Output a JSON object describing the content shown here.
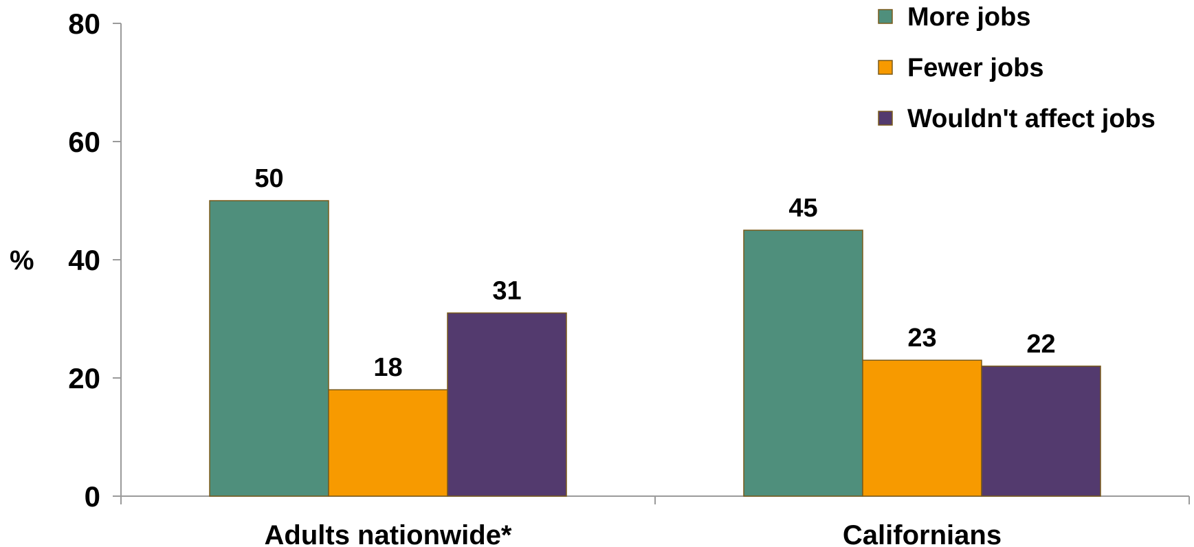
{
  "chart_data": {
    "type": "bar",
    "title": "",
    "xlabel": "",
    "ylabel": "%",
    "ylim": [
      0,
      80
    ],
    "yticks": [
      0,
      20,
      40,
      60,
      80
    ],
    "grid": false,
    "legend_position": "top-right",
    "categories": [
      "Adults nationwide*",
      "Californians"
    ],
    "series": [
      {
        "name": "More jobs",
        "values": [
          50,
          45
        ],
        "color": "#4F8F7C"
      },
      {
        "name": "Fewer jobs",
        "values": [
          18,
          23
        ],
        "color": "#F79A00"
      },
      {
        "name": "Wouldn't affect jobs",
        "values": [
          31,
          22
        ],
        "color": "#533A6E"
      }
    ],
    "bar_outline_color": "#7A5A1A",
    "axis_color": "#9A9A9A"
  }
}
